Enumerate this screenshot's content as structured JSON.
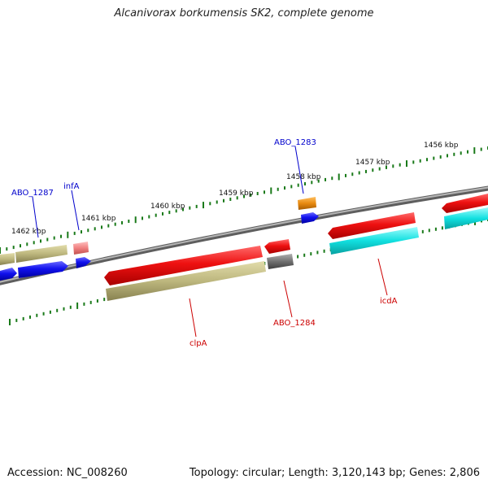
{
  "title": "Alcanivorax borkumensis SK2, complete genome",
  "footer": {
    "accession": "Accession: NC_008260",
    "summary": "Topology: circular; Length: 3,120,143 bp; Genes: 2,806"
  },
  "ticks": [
    {
      "label": "1462 kbp"
    },
    {
      "label": "1461 kbp"
    },
    {
      "label": "1460 kbp"
    },
    {
      "label": "1459 kbp"
    },
    {
      "label": "1458 kbp"
    },
    {
      "label": "1457 kbp"
    },
    {
      "label": "1456 kbp"
    }
  ],
  "gene_labels": [
    {
      "name": "ABO_1287",
      "color": "#0000cc"
    },
    {
      "name": "infA",
      "color": "#0000cc"
    },
    {
      "name": "ABO_1283",
      "color": "#0000cc"
    },
    {
      "name": "clpA",
      "color": "#cc0000"
    },
    {
      "name": "ABO_1284",
      "color": "#cc0000"
    },
    {
      "name": "icdA",
      "color": "#cc0000"
    }
  ],
  "colors": {
    "backbone": "#8c8c8c",
    "tick": "#1a7a1a",
    "red_gene": "#ee1111",
    "blue_gene": "#1111ee",
    "olive_gene": "#b8b27a",
    "cyan_gene": "#11dddd",
    "gray_gene": "#6e6e6e",
    "orange_gene": "#e88a10",
    "pink_gene": "#f08080"
  }
}
